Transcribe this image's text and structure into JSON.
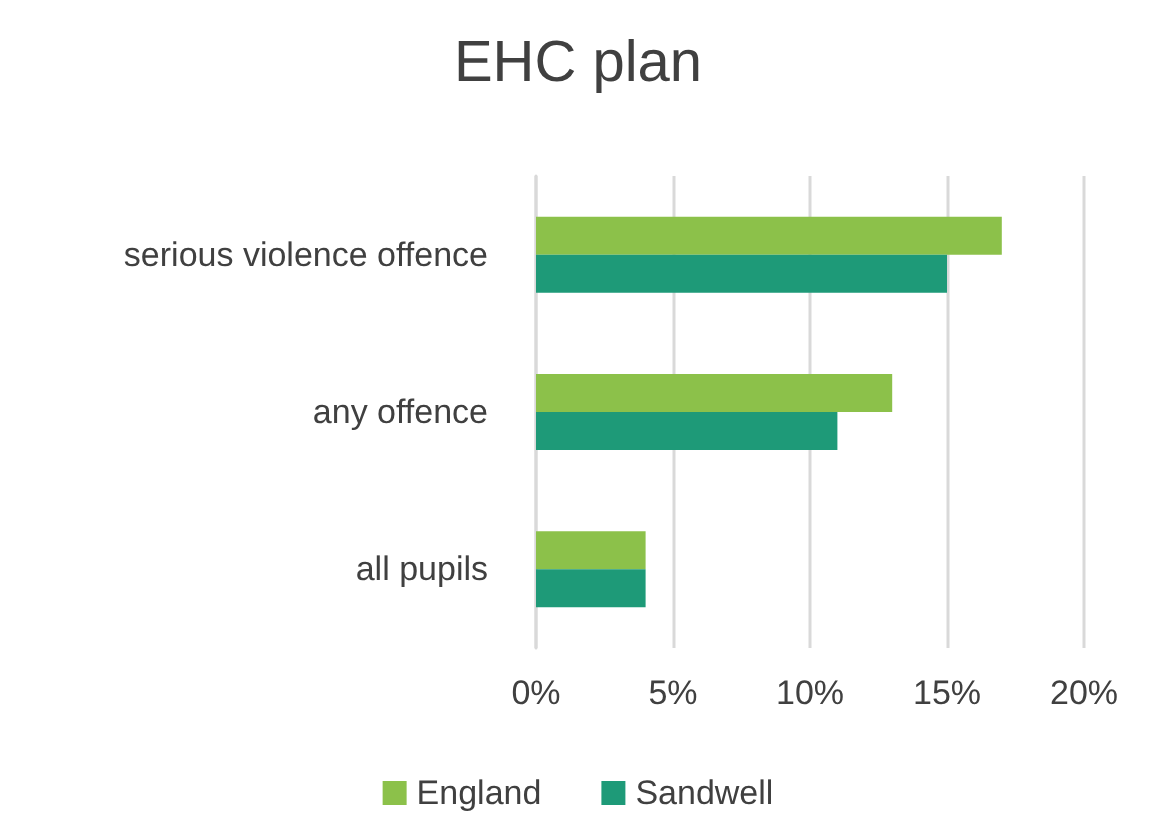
{
  "chart_data": {
    "type": "bar",
    "title": "EHC plan",
    "orientation": "horizontal",
    "categories": [
      "serious violence offence",
      "any offence",
      "all pupils"
    ],
    "series": [
      {
        "name": "England",
        "color": "#8cc14a",
        "values": [
          17,
          13,
          4
        ]
      },
      {
        "name": "Sandwell",
        "color": "#1e9a78",
        "values": [
          15,
          11,
          4
        ]
      }
    ],
    "xlim": [
      0,
      20
    ],
    "xticks": [
      {
        "value": 0,
        "label": "0%"
      },
      {
        "value": 5,
        "label": "5%"
      },
      {
        "value": 10,
        "label": "10%"
      },
      {
        "value": 15,
        "label": "15%"
      },
      {
        "value": 20,
        "label": "20%"
      }
    ],
    "grid": "x",
    "legend": "bottom"
  }
}
